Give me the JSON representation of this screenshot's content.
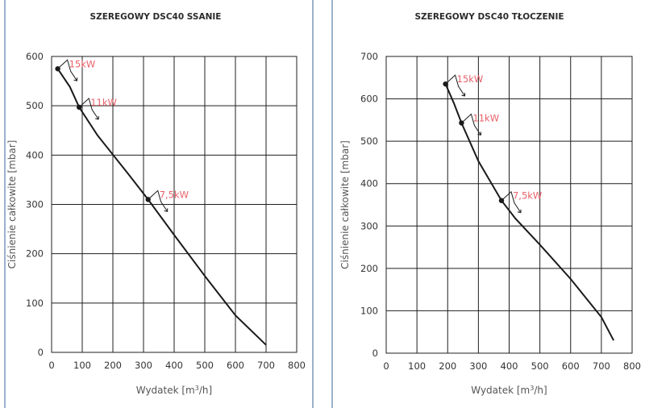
{
  "chart_data": [
    {
      "type": "line",
      "title": "SZEREGOWY DSC40 SSANIE",
      "xlabel": "Wydatek [m³/h]",
      "ylabel": "Ciśnienie całkowite [mbar]",
      "xlim": [
        0,
        800
      ],
      "ylim": [
        0,
        600
      ],
      "xticks": [
        "0",
        "100",
        "200",
        "300",
        "400",
        "500",
        "600",
        "700",
        "800"
      ],
      "yticks": [
        "0",
        "100",
        "200",
        "300",
        "400",
        "500",
        "600"
      ],
      "grid": true,
      "series": [
        {
          "x": [
            20,
            60,
            90,
            150,
            250,
            315,
            400,
            500,
            600,
            700
          ],
          "y": [
            575,
            538,
            497,
            440,
            362,
            310,
            238,
            155,
            75,
            15
          ]
        }
      ],
      "markers": [
        {
          "label": "15kW",
          "x": 20,
          "y": 575
        },
        {
          "label": "11kW",
          "x": 90,
          "y": 497
        },
        {
          "label": "7,5kW",
          "x": 315,
          "y": 310
        }
      ]
    },
    {
      "type": "line",
      "title": "SZEREGOWY DSC40 TŁOCZENIE",
      "xlabel": "Wydatek [m³/h]",
      "ylabel": "Ciśnienie całkowite [mbar]",
      "xlim": [
        0,
        800
      ],
      "ylim": [
        0,
        700
      ],
      "xticks": [
        "0",
        "100",
        "200",
        "300",
        "400",
        "500",
        "600",
        "700",
        "800"
      ],
      "yticks": [
        "0",
        "100",
        "200",
        "300",
        "400",
        "500",
        "600",
        "700"
      ],
      "grid": true,
      "series": [
        {
          "x": [
            193,
            220,
            245,
            300,
            375,
            420,
            500,
            600,
            700,
            740
          ],
          "y": [
            635,
            590,
            543,
            453,
            360,
            318,
            256,
            175,
            85,
            30
          ]
        }
      ],
      "markers": [
        {
          "label": "15kW",
          "x": 193,
          "y": 635
        },
        {
          "label": "11kW",
          "x": 245,
          "y": 543
        },
        {
          "label": "7,5kW",
          "x": 375,
          "y": 360
        }
      ]
    }
  ]
}
